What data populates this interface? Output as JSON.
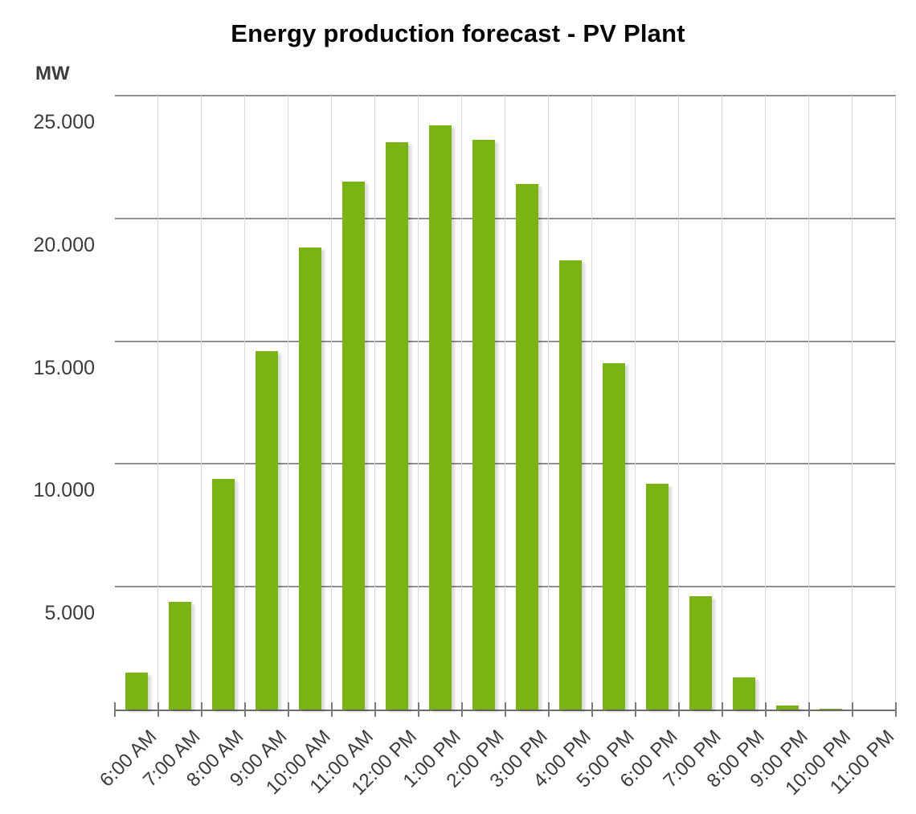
{
  "chart_data": {
    "type": "bar",
    "title": "Energy production forecast - PV Plant",
    "xlabel": "",
    "ylabel": "MW",
    "categories": [
      "6:00 AM",
      "7:00 AM",
      "8:00 AM",
      "9:00 AM",
      "10:00 AM",
      "11:00 AM",
      "12:00 PM",
      "1:00 PM",
      "2:00 PM",
      "3:00 PM",
      "4:00 PM",
      "5:00 PM",
      "6:00 PM",
      "7:00 PM",
      "8:00 PM",
      "9:00 PM",
      "10:00 PM",
      "11:00 PM"
    ],
    "values": [
      1500,
      4400,
      9400,
      14600,
      18800,
      21500,
      23100,
      23800,
      23200,
      21400,
      18300,
      14100,
      9200,
      4600,
      1300,
      150,
      30,
      0
    ],
    "y_ticks": [
      "25.000",
      "20.000",
      "15.000",
      "10.000",
      "5.000"
    ],
    "y_tick_values": [
      25000,
      20000,
      15000,
      10000,
      5000
    ],
    "ylim": [
      0,
      25000
    ],
    "grid": "on",
    "legend": "none",
    "bar_color": "#7AB414",
    "hgrid_color": "#8f8f8f",
    "vgrid_color": "#d9d9d9",
    "axis_color": "#6e6e6e",
    "label_color": "#3b3b3b"
  }
}
